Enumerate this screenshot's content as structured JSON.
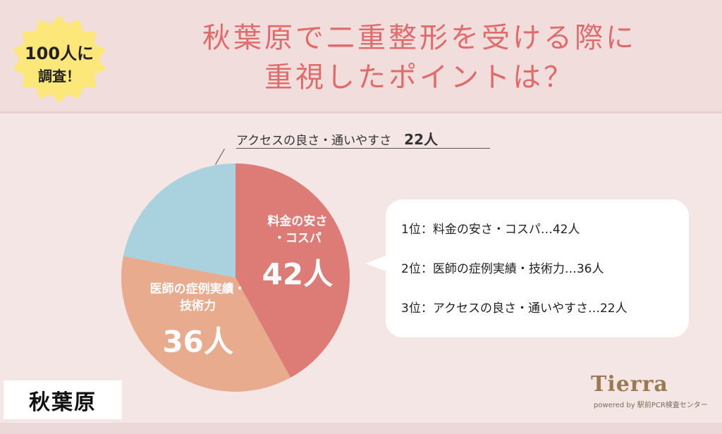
{
  "badge": {
    "line1": "100人に",
    "line2": "調査！"
  },
  "title": {
    "line1": "秋葉原で二重整形を受ける際に",
    "line2": "重視したポイントは？"
  },
  "city_label": "秋葉原",
  "ranking": [
    "1位：料金の安さ・コスパ…42人",
    "2位：医師の症例実績・技術力…36人",
    "3位：アクセスの良さ・通いやすさ…22人"
  ],
  "logo": {
    "name": "Tierra",
    "sub": "powered by 駅前PCR検査センター"
  },
  "colors": {
    "slice1": "#dd7b76",
    "slice2": "#e9ab8d",
    "slice3": "#a9d1de",
    "title": "#df6b6b"
  },
  "chart_data": {
    "type": "pie",
    "slices": [
      {
        "label_lines": [
          "料金の安さ",
          "・コスパ"
        ],
        "value": 42,
        "value_label": "42人"
      },
      {
        "label_lines": [
          "医師の症例実績・",
          "技術力"
        ],
        "value": 36,
        "value_label": "36人"
      },
      {
        "label_lines": [
          "アクセスの良さ・通いやすさ"
        ],
        "value": 22,
        "value_label": "22人"
      }
    ]
  }
}
